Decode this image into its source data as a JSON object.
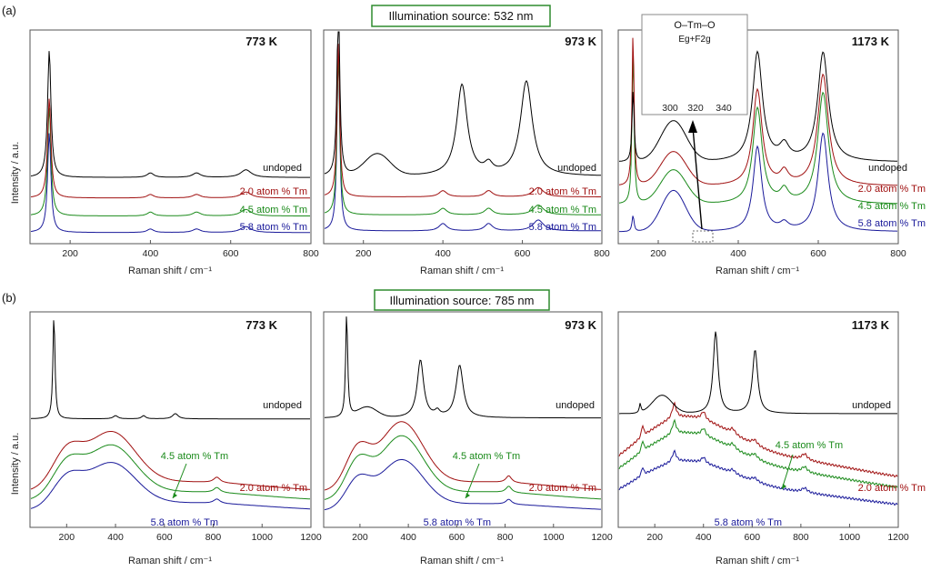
{
  "chart_data": {
    "type": "line",
    "ylabel": "Intensity / a.u.",
    "xlabel": "Raman shift / cm⁻¹",
    "series_colors": {
      "undoped": "#000000",
      "2.0 atom % Tm": "#a01010",
      "4.5 atom % Tm": "#1a8a1a",
      "5.8 atom % Tm": "#1a1a9a"
    },
    "rows": [
      {
        "id": "(a)",
        "source": "Illumination source: 532 nm",
        "xlim": [
          100,
          800
        ],
        "xticks_532": [
          "200",
          "400",
          "600",
          "800"
        ],
        "panels": [
          {
            "temperature": "773 K",
            "series": [
              {
                "name": "undoped",
                "label": "undoped",
                "values": [
                  [
                    120,
                    0.05
                  ],
                  [
                    150,
                    1.0
                  ],
                  [
                    180,
                    0.05
                  ],
                  [
                    400,
                    0.06
                  ],
                  [
                    520,
                    0.06
                  ],
                  [
                    640,
                    0.1
                  ],
                  [
                    800,
                    0.05
                  ]
                ]
              },
              {
                "name": "2.0 atom % Tm",
                "label": "2.0 atom % Tm",
                "values": [
                  [
                    120,
                    0.05
                  ],
                  [
                    150,
                    0.9
                  ],
                  [
                    180,
                    0.05
                  ],
                  [
                    400,
                    0.07
                  ],
                  [
                    520,
                    0.07
                  ],
                  [
                    640,
                    0.09
                  ],
                  [
                    800,
                    0.05
                  ]
                ]
              },
              {
                "name": "4.5 atom % Tm",
                "label": "4.5 atom % Tm",
                "values": [
                  [
                    120,
                    0.05
                  ],
                  [
                    150,
                    0.85
                  ],
                  [
                    180,
                    0.05
                  ],
                  [
                    400,
                    0.07
                  ],
                  [
                    520,
                    0.08
                  ],
                  [
                    640,
                    0.1
                  ],
                  [
                    800,
                    0.05
                  ]
                ]
              },
              {
                "name": "5.8 atom % Tm",
                "label": "5.8 atom % Tm",
                "values": [
                  [
                    120,
                    0.05
                  ],
                  [
                    150,
                    0.8
                  ],
                  [
                    180,
                    0.05
                  ],
                  [
                    400,
                    0.07
                  ],
                  [
                    520,
                    0.08
                  ],
                  [
                    640,
                    0.1
                  ],
                  [
                    800,
                    0.05
                  ]
                ]
              }
            ]
          },
          {
            "temperature": "973 K",
            "series": [
              {
                "name": "undoped",
                "label": "undoped",
                "values": [
                  [
                    120,
                    0.1
                  ],
                  [
                    135,
                    1.0
                  ],
                  [
                    160,
                    0.1
                  ],
                  [
                    230,
                    0.22
                  ],
                  [
                    320,
                    0.1
                  ],
                  [
                    450,
                    0.6
                  ],
                  [
                    520,
                    0.12
                  ],
                  [
                    610,
                    0.6
                  ],
                  [
                    800,
                    0.05
                  ]
                ]
              },
              {
                "name": "2.0 atom % Tm",
                "label": "2.0 atom % Tm",
                "values": [
                  [
                    120,
                    0.1
                  ],
                  [
                    135,
                    1.0
                  ],
                  [
                    160,
                    0.05
                  ],
                  [
                    400,
                    0.07
                  ],
                  [
                    520,
                    0.07
                  ],
                  [
                    640,
                    0.1
                  ],
                  [
                    800,
                    0.05
                  ]
                ]
              },
              {
                "name": "4.5 atom % Tm",
                "label": "4.5 atom % Tm",
                "values": [
                  [
                    120,
                    0.1
                  ],
                  [
                    135,
                    1.0
                  ],
                  [
                    160,
                    0.05
                  ],
                  [
                    400,
                    0.08
                  ],
                  [
                    520,
                    0.08
                  ],
                  [
                    640,
                    0.12
                  ],
                  [
                    800,
                    0.05
                  ]
                ]
              },
              {
                "name": "5.8 atom % Tm",
                "label": "5.8 atom % Tm",
                "values": [
                  [
                    120,
                    0.1
                  ],
                  [
                    135,
                    1.0
                  ],
                  [
                    160,
                    0.05
                  ],
                  [
                    400,
                    0.08
                  ],
                  [
                    520,
                    0.08
                  ],
                  [
                    640,
                    0.12
                  ],
                  [
                    800,
                    0.05
                  ]
                ]
              }
            ]
          },
          {
            "temperature": "1173 K",
            "inset": {
              "title": "O–Tm–O",
              "subtitle": "Eg+F2g",
              "xticks": [
                "300",
                "320",
                "340"
              ]
            },
            "series": [
              {
                "name": "undoped",
                "label": "undoped",
                "values": [
                  [
                    120,
                    0.1
                  ],
                  [
                    140,
                    0.35
                  ],
                  [
                    240,
                    0.45
                  ],
                  [
                    330,
                    0.2
                  ],
                  [
                    450,
                    1.0
                  ],
                  [
                    520,
                    0.3
                  ],
                  [
                    610,
                    1.0
                  ],
                  [
                    800,
                    0.15
                  ]
                ]
              },
              {
                "name": "2.0 atom % Tm",
                "label": "2.0 atom % Tm",
                "values": [
                  [
                    120,
                    0.1
                  ],
                  [
                    140,
                    1.0
                  ],
                  [
                    240,
                    0.45
                  ],
                  [
                    330,
                    0.1
                  ],
                  [
                    450,
                    0.85
                  ],
                  [
                    520,
                    0.2
                  ],
                  [
                    610,
                    0.9
                  ],
                  [
                    800,
                    0.1
                  ]
                ]
              },
              {
                "name": "4.5 atom % Tm",
                "label": "4.5 atom % Tm",
                "values": [
                  [
                    120,
                    0.1
                  ],
                  [
                    140,
                    0.9
                  ],
                  [
                    240,
                    0.4
                  ],
                  [
                    330,
                    0.1
                  ],
                  [
                    450,
                    0.8
                  ],
                  [
                    520,
                    0.2
                  ],
                  [
                    610,
                    0.9
                  ],
                  [
                    800,
                    0.1
                  ]
                ]
              },
              {
                "name": "5.8 atom % Tm",
                "label": "5.8 atom % Tm",
                "values": [
                  [
                    120,
                    0.1
                  ],
                  [
                    140,
                    0.3
                  ],
                  [
                    240,
                    0.45
                  ],
                  [
                    330,
                    0.05
                  ],
                  [
                    450,
                    0.75
                  ],
                  [
                    520,
                    0.15
                  ],
                  [
                    610,
                    0.85
                  ],
                  [
                    800,
                    0.05
                  ]
                ]
              }
            ]
          }
        ]
      },
      {
        "id": "(b)",
        "source": "Illumination source: 785 nm",
        "xlim": [
          50,
          1200
        ],
        "xticks_785": [
          "200",
          "400",
          "600",
          "800",
          "1000",
          "1200"
        ],
        "panels": [
          {
            "temperature": "773 K",
            "series": [
              {
                "name": "undoped",
                "label": "undoped",
                "values": [
                  [
                    60,
                    0.05
                  ],
                  [
                    150,
                    1.0
                  ],
                  [
                    180,
                    0.05
                  ],
                  [
                    400,
                    0.05
                  ],
                  [
                    640,
                    0.05
                  ],
                  [
                    1200,
                    0.05
                  ]
                ]
              },
              {
                "name": "2.0 atom % Tm",
                "label": "2.0 atom % Tm",
                "values": [
                  [
                    60,
                    0.3
                  ],
                  [
                    200,
                    0.6
                  ],
                  [
                    380,
                    0.8
                  ],
                  [
                    800,
                    0.2
                  ],
                  [
                    1200,
                    0.1
                  ]
                ]
              },
              {
                "name": "4.5 atom % Tm",
                "label": "4.5 atom % Tm",
                "values": [
                  [
                    60,
                    0.3
                  ],
                  [
                    200,
                    0.5
                  ],
                  [
                    380,
                    0.7
                  ],
                  [
                    800,
                    0.15
                  ],
                  [
                    1200,
                    0.08
                  ]
                ]
              },
              {
                "name": "5.8 atom % Tm",
                "label": "5.8 atom % Tm",
                "values": [
                  [
                    60,
                    0.2
                  ],
                  [
                    200,
                    0.4
                  ],
                  [
                    380,
                    0.6
                  ],
                  [
                    800,
                    0.1
                  ],
                  [
                    1200,
                    0.05
                  ]
                ]
              }
            ]
          },
          {
            "temperature": "973 K",
            "series": [
              {
                "name": "undoped",
                "label": "undoped",
                "values": [
                  [
                    60,
                    0.1
                  ],
                  [
                    145,
                    1.0
                  ],
                  [
                    230,
                    0.3
                  ],
                  [
                    450,
                    0.7
                  ],
                  [
                    610,
                    0.6
                  ],
                  [
                    1200,
                    0.05
                  ]
                ]
              },
              {
                "name": "2.0 atom % Tm",
                "label": "2.0 atom % Tm",
                "values": [
                  [
                    60,
                    0.3
                  ],
                  [
                    180,
                    0.6
                  ],
                  [
                    370,
                    0.9
                  ],
                  [
                    810,
                    0.25
                  ],
                  [
                    1200,
                    0.1
                  ]
                ]
              },
              {
                "name": "4.5 atom % Tm",
                "label": "4.5 atom % Tm",
                "values": [
                  [
                    60,
                    0.3
                  ],
                  [
                    180,
                    0.55
                  ],
                  [
                    370,
                    0.8
                  ],
                  [
                    810,
                    0.2
                  ],
                  [
                    1200,
                    0.08
                  ]
                ]
              },
              {
                "name": "5.8 atom % Tm",
                "label": "5.8 atom % Tm",
                "values": [
                  [
                    60,
                    0.2
                  ],
                  [
                    180,
                    0.45
                  ],
                  [
                    370,
                    0.6
                  ],
                  [
                    810,
                    0.15
                  ],
                  [
                    1200,
                    0.05
                  ]
                ]
              }
            ]
          },
          {
            "temperature": "1173 K",
            "series": [
              {
                "name": "undoped",
                "label": "undoped",
                "values": [
                  [
                    60,
                    0.1
                  ],
                  [
                    140,
                    0.25
                  ],
                  [
                    230,
                    0.4
                  ],
                  [
                    450,
                    1.0
                  ],
                  [
                    610,
                    0.8
                  ],
                  [
                    1200,
                    0.05
                  ]
                ]
              },
              {
                "name": "2.0 atom % Tm",
                "label": "2.0 atom % Tm",
                "values": [
                  [
                    60,
                    0.35
                  ],
                  [
                    150,
                    0.5
                  ],
                  [
                    280,
                    0.6
                  ],
                  [
                    380,
                    0.6
                  ],
                  [
                    810,
                    0.3
                  ],
                  [
                    1200,
                    0.1
                  ]
                ]
              },
              {
                "name": "4.5 atom % Tm",
                "label": "4.5 atom % Tm",
                "values": [
                  [
                    60,
                    0.3
                  ],
                  [
                    150,
                    0.45
                  ],
                  [
                    280,
                    0.5
                  ],
                  [
                    380,
                    0.45
                  ],
                  [
                    810,
                    0.2
                  ],
                  [
                    1200,
                    0.05
                  ]
                ]
              },
              {
                "name": "5.8 atom % Tm",
                "label": "5.8 atom % Tm",
                "values": [
                  [
                    60,
                    0.2
                  ],
                  [
                    150,
                    0.35
                  ],
                  [
                    280,
                    0.45
                  ],
                  [
                    380,
                    0.35
                  ],
                  [
                    810,
                    0.15
                  ],
                  [
                    1200,
                    0.03
                  ]
                ]
              }
            ]
          }
        ]
      }
    ]
  }
}
